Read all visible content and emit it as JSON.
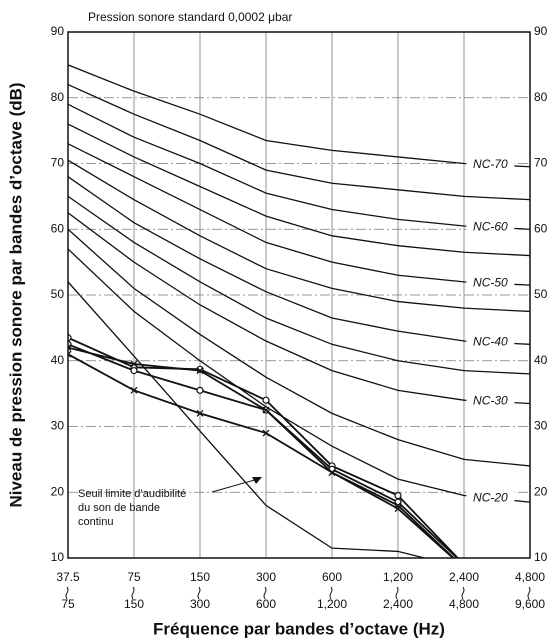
{
  "chart_data": {
    "type": "line",
    "title": "Pression sonore standard 0,0002 μbar",
    "x_label": "Fréquence par bandes d’octave (Hz)",
    "y_label": "Niveau de pression sonore par bandes d’octave (dB)",
    "categories": [
      "37.5",
      "75",
      "150",
      "300",
      "600",
      "1,200",
      "2,400",
      "4,800"
    ],
    "categories_upper": [
      "75",
      "150",
      "300",
      "600",
      "1,200",
      "2,400",
      "4,800",
      "9,600"
    ],
    "ylim": [
      10,
      90
    ],
    "yticks": [
      10,
      20,
      30,
      40,
      50,
      60,
      70,
      80,
      90
    ],
    "grid": true,
    "annotation": [
      "Seuil limite d’audibilité",
      "du son de bande",
      "continu"
    ],
    "series": [
      {
        "name": "NC-70",
        "color": "#111111",
        "values": [
          85,
          81,
          77.5,
          73.5,
          72,
          71,
          70,
          69.5
        ]
      },
      {
        "color": "#111111",
        "values": [
          82,
          77.5,
          73.5,
          69,
          67,
          66,
          65,
          64.5
        ]
      },
      {
        "name": "NC-60",
        "color": "#111111",
        "values": [
          79,
          74,
          70,
          65.5,
          63,
          61.5,
          60.5,
          60
        ]
      },
      {
        "color": "#111111",
        "values": [
          76,
          71,
          66.5,
          62,
          59,
          57.5,
          56.5,
          56
        ]
      },
      {
        "name": "NC-50",
        "color": "#111111",
        "values": [
          73,
          68,
          63,
          58,
          55,
          53,
          52,
          51.5
        ]
      },
      {
        "color": "#111111",
        "values": [
          70.5,
          64.5,
          59,
          54,
          51,
          49,
          48,
          47.5
        ]
      },
      {
        "name": "NC-40",
        "color": "#111111",
        "values": [
          68,
          61,
          55.5,
          50.5,
          46.5,
          44.5,
          43,
          42.5
        ]
      },
      {
        "color": "#111111",
        "values": [
          65,
          58,
          52,
          46.5,
          42.5,
          40,
          38.5,
          38
        ]
      },
      {
        "name": "NC-30",
        "color": "#111111",
        "values": [
          62.5,
          55,
          48.5,
          43,
          38.5,
          35.5,
          34,
          33.5
        ]
      },
      {
        "color": "#111111",
        "values": [
          60,
          51,
          44,
          37.5,
          32,
          28,
          25,
          24
        ]
      },
      {
        "name": "NC-20",
        "color": "#111111",
        "values": [
          57,
          47.5,
          40,
          33,
          27,
          22,
          19.5,
          18.5
        ]
      },
      {
        "color": "#111111",
        "values": [
          52,
          40.7,
          29.3,
          18,
          11.5,
          11,
          8.5,
          null
        ]
      },
      {
        "color": "#111111",
        "marker": "circle",
        "values": [
          43.5,
          39,
          38.7,
          34,
          24,
          19.5,
          9,
          null
        ]
      },
      {
        "color": "#111111",
        "marker": "circle",
        "values": [
          42.5,
          38.5,
          35.5,
          32.5,
          23.5,
          18.5,
          9,
          null
        ]
      },
      {
        "color": "#111111",
        "marker": "x",
        "values": [
          41,
          35.5,
          32,
          29,
          23,
          17.5,
          8.5,
          null
        ]
      },
      {
        "color": "#111111",
        "marker": "x",
        "values": [
          42,
          39.5,
          38.5,
          32.5,
          23,
          18,
          8.5,
          null
        ]
      }
    ]
  }
}
